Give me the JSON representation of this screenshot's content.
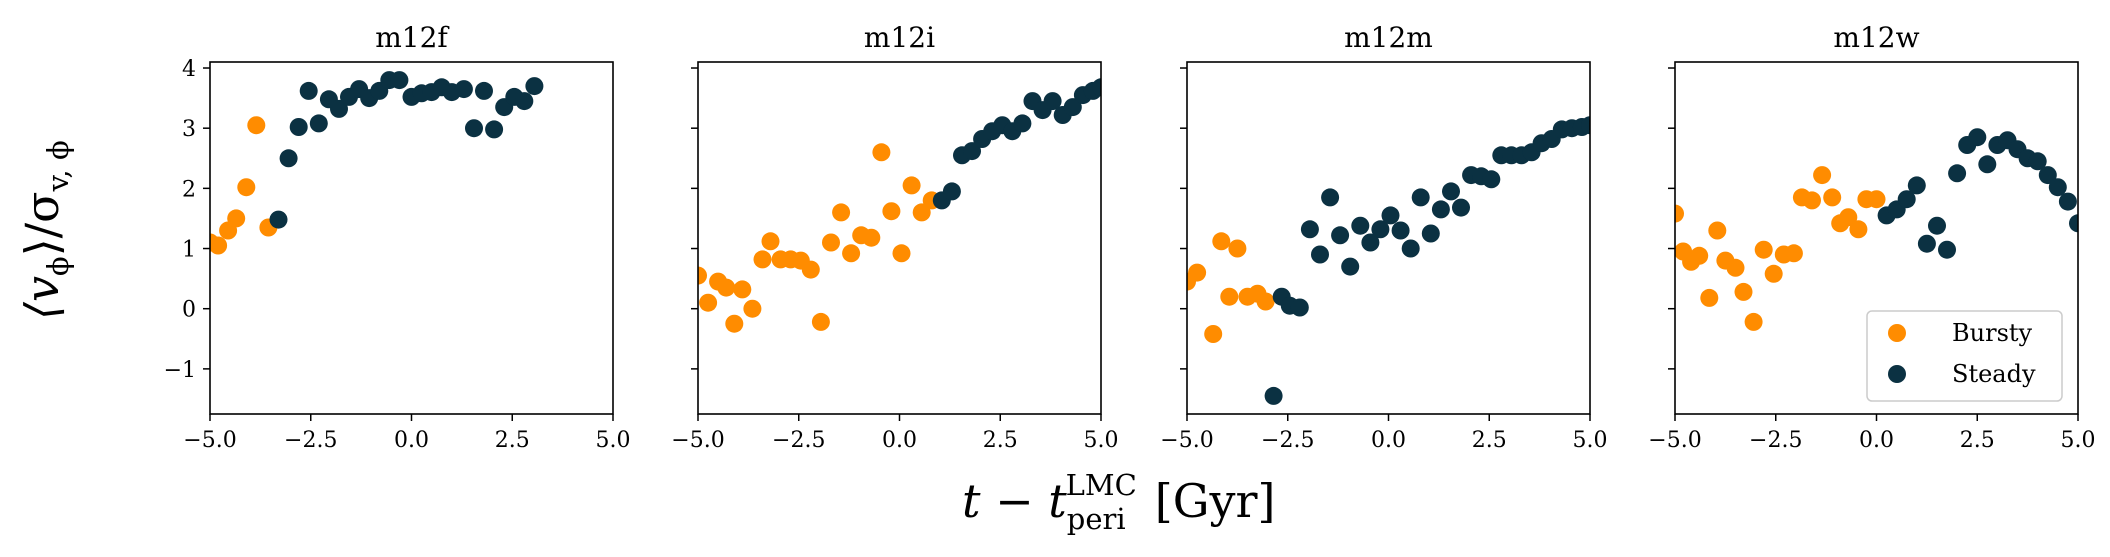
{
  "figure": {
    "xlabel_main": "t − t",
    "xlabel_sup": "LMC",
    "xlabel_sub": "peri",
    "xlabel_unit": "[Gyr]",
    "ylabel_main": "⟨v",
    "ylabel_sub1": "ϕ",
    "ylabel_mid": "⟩/σ",
    "ylabel_sub2": "v, ϕ"
  },
  "colors": {
    "bursty": "#ff8c00",
    "steady": "#0b3142"
  },
  "legend": {
    "placement": "lower-right",
    "entries": [
      "Bursty",
      "Steady"
    ]
  },
  "chart_data": [
    {
      "type": "scatter",
      "title": "m12f",
      "xlim": [
        -5,
        5
      ],
      "ylim": [
        -1.75,
        4.1
      ],
      "xticks": [
        "−5.0",
        "−2.5",
        "0.0",
        "2.5",
        "5.0"
      ],
      "yticks": [
        "−1",
        "0",
        "1",
        "2",
        "3",
        "4"
      ],
      "series": [
        {
          "name": "Bursty",
          "x": [
            -5.0,
            -4.8,
            -4.55,
            -4.35,
            -4.1,
            -3.85,
            -3.55
          ],
          "y": [
            1.1,
            1.05,
            1.3,
            1.5,
            2.02,
            3.05,
            1.35
          ]
        },
        {
          "name": "Steady",
          "x": [
            -3.3,
            -3.05,
            -2.8,
            -2.55,
            -2.3,
            -2.05,
            -1.8,
            -1.55,
            -1.3,
            -1.05,
            -0.8,
            -0.55,
            -0.3,
            0.0,
            0.25,
            0.5,
            0.75,
            1.0,
            1.3,
            1.55,
            1.8,
            2.05,
            2.3,
            2.55,
            2.8,
            3.05
          ],
          "y": [
            1.48,
            2.5,
            3.02,
            3.62,
            3.08,
            3.48,
            3.32,
            3.52,
            3.65,
            3.5,
            3.62,
            3.8,
            3.8,
            3.52,
            3.58,
            3.6,
            3.68,
            3.6,
            3.65,
            3.0,
            3.62,
            2.98,
            3.35,
            3.52,
            3.45,
            3.7
          ]
        }
      ]
    },
    {
      "type": "scatter",
      "title": "m12i",
      "xlim": [
        -5,
        5
      ],
      "ylim": [
        -1.75,
        4.1
      ],
      "xticks": [
        "−5.0",
        "−2.5",
        "0.0",
        "2.5",
        "5.0"
      ],
      "yticks": [],
      "series": [
        {
          "name": "Bursty",
          "x": [
            -5.0,
            -4.75,
            -4.5,
            -4.3,
            -4.1,
            -3.9,
            -3.65,
            -3.4,
            -3.2,
            -2.95,
            -2.7,
            -2.45,
            -2.2,
            -1.95,
            -1.7,
            -1.45,
            -1.2,
            -0.95,
            -0.7,
            -0.45,
            -0.2,
            0.05,
            0.3,
            0.55,
            0.8
          ],
          "y": [
            0.55,
            0.1,
            0.45,
            0.35,
            -0.25,
            0.32,
            0.0,
            0.82,
            1.12,
            0.82,
            0.82,
            0.8,
            0.65,
            -0.22,
            1.1,
            1.6,
            0.92,
            1.22,
            1.18,
            2.6,
            1.62,
            0.92,
            2.05,
            1.6,
            1.8
          ]
        },
        {
          "name": "Steady",
          "x": [
            1.05,
            1.3,
            1.55,
            1.8,
            2.05,
            2.3,
            2.55,
            2.8,
            3.05,
            3.3,
            3.55,
            3.8,
            4.05,
            4.3,
            4.55,
            4.8,
            5.0
          ],
          "y": [
            1.8,
            1.95,
            2.55,
            2.62,
            2.82,
            2.95,
            3.05,
            2.95,
            3.08,
            3.45,
            3.3,
            3.45,
            3.22,
            3.35,
            3.55,
            3.62,
            3.68
          ]
        }
      ]
    },
    {
      "type": "scatter",
      "title": "m12m",
      "xlim": [
        -5,
        5
      ],
      "ylim": [
        -1.75,
        4.1
      ],
      "xticks": [
        "−5.0",
        "−2.5",
        "0.0",
        "2.5",
        "5.0"
      ],
      "yticks": [],
      "series": [
        {
          "name": "Bursty",
          "x": [
            -5.0,
            -4.75,
            -4.35,
            -4.15,
            -3.95,
            -3.75,
            -3.5,
            -3.25,
            -3.05
          ],
          "y": [
            0.45,
            0.6,
            -0.42,
            1.12,
            0.2,
            1.0,
            0.2,
            0.25,
            0.12
          ]
        },
        {
          "name": "Steady",
          "x": [
            -2.85,
            -2.65,
            -2.45,
            -2.2,
            -1.95,
            -1.7,
            -1.45,
            -1.2,
            -0.95,
            -0.7,
            -0.45,
            -0.2,
            0.05,
            0.3,
            0.55,
            0.8,
            1.05,
            1.3,
            1.55,
            1.8,
            2.05,
            2.3,
            2.55,
            2.8,
            3.05,
            3.3,
            3.55,
            3.8,
            4.05,
            4.3,
            4.55,
            4.8,
            5.0
          ],
          "y": [
            -1.45,
            0.2,
            0.05,
            0.02,
            1.32,
            0.9,
            1.85,
            1.22,
            0.7,
            1.38,
            1.1,
            1.32,
            1.55,
            1.3,
            1.0,
            1.85,
            1.25,
            1.65,
            1.95,
            1.68,
            2.22,
            2.2,
            2.15,
            2.55,
            2.55,
            2.55,
            2.6,
            2.75,
            2.82,
            2.98,
            3.0,
            3.02,
            3.05
          ]
        }
      ]
    },
    {
      "type": "scatter",
      "title": "m12w",
      "xlim": [
        -5,
        5
      ],
      "ylim": [
        -1.75,
        4.1
      ],
      "xticks": [
        "−5.0",
        "−2.5",
        "0.0",
        "2.5",
        "5.0"
      ],
      "yticks": [],
      "series": [
        {
          "name": "Bursty",
          "x": [
            -5.0,
            -4.8,
            -4.6,
            -4.4,
            -4.15,
            -3.95,
            -3.75,
            -3.5,
            -3.3,
            -3.05,
            -2.8,
            -2.55,
            -2.3,
            -2.05,
            -1.85,
            -1.6,
            -1.35,
            -1.1,
            -0.9,
            -0.7,
            -0.45,
            -0.25,
            0.0
          ],
          "y": [
            1.58,
            0.95,
            0.78,
            0.88,
            0.18,
            1.3,
            0.8,
            0.68,
            0.28,
            -0.22,
            0.98,
            0.58,
            0.9,
            0.92,
            1.85,
            1.8,
            2.22,
            1.85,
            1.42,
            1.52,
            1.32,
            1.82,
            1.82
          ]
        },
        {
          "name": "Steady",
          "x": [
            0.25,
            0.5,
            0.75,
            1.0,
            1.25,
            1.5,
            1.75,
            2.0,
            2.25,
            2.5,
            2.75,
            3.0,
            3.25,
            3.5,
            3.75,
            4.0,
            4.25,
            4.5,
            4.75,
            5.0
          ],
          "y": [
            1.55,
            1.65,
            1.82,
            2.05,
            1.08,
            1.38,
            0.98,
            2.25,
            2.72,
            2.85,
            2.4,
            2.72,
            2.8,
            2.65,
            2.5,
            2.45,
            2.22,
            2.02,
            1.78,
            1.42
          ]
        }
      ]
    }
  ]
}
